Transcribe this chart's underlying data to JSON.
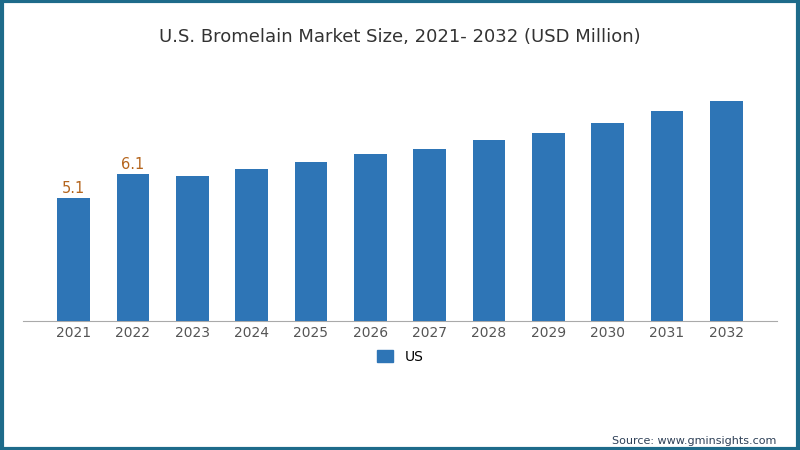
{
  "title": "U.S. Bromelain Market Size, 2021- 2032 (USD Million)",
  "years": [
    2021,
    2022,
    2023,
    2024,
    2025,
    2026,
    2027,
    2028,
    2029,
    2030,
    2031,
    2032
  ],
  "values": [
    5.1,
    6.1,
    6.0,
    6.3,
    6.6,
    6.9,
    7.1,
    7.5,
    7.8,
    8.2,
    8.7,
    9.1
  ],
  "bar_color": "#2e75b6",
  "bar_labels": [
    "5.1",
    "6.1",
    "",
    "",
    "",
    "",
    "",
    "",
    "",
    "",
    "",
    ""
  ],
  "background_color": "#ffffff",
  "border_color": "#1e6b8a",
  "legend_label": "US",
  "source_text": "Source: www.gminsights.com",
  "title_color": "#333333",
  "label_color": "#b5651d",
  "source_color": "#2e4057",
  "ylim": [
    0,
    10.5
  ],
  "bar_width": 0.55
}
